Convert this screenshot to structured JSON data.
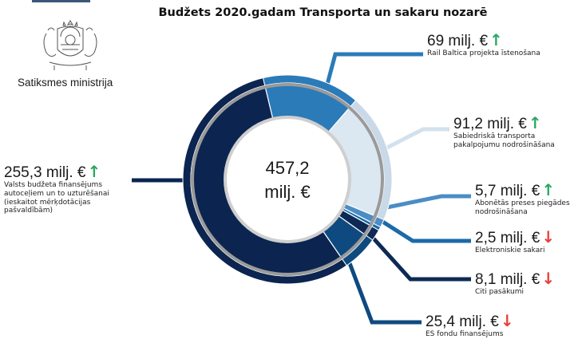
{
  "header": {
    "title": "Budžets 2020.gadam Transporta un sakaru nozarē",
    "ministry": "Satiksmes ministrija"
  },
  "chart_data": {
    "type": "pie",
    "variant": "donut",
    "title": "Budžets 2020.gadam Transporta un sakaru nozarē",
    "total": {
      "value": "457,2",
      "unit": "milj. €"
    },
    "slices": [
      {
        "value": 69,
        "value_label": "69 milj. €",
        "label": "Rail Baltica projekta īstenošana",
        "trend": "up",
        "color": "#2b7bb9"
      },
      {
        "value": 91.2,
        "value_label": "91,2 milj. €",
        "label": "Sabiedriskā transporta pakalpojumu nodrošināšana",
        "trend": "up",
        "color": "#dbe7f1"
      },
      {
        "value": 5.7,
        "value_label": "5,7 milj. €",
        "label": "Abonētās preses piegādes nodrošināšana",
        "trend": "up",
        "color": "#4b8dc5"
      },
      {
        "value": 2.5,
        "value_label": "2,5 milj. €",
        "label": "Elektroniskie sakari",
        "trend": "down",
        "color": "#1b6aa9"
      },
      {
        "value": 8.1,
        "value_label": "8,1 milj. €",
        "label": "Citi pasākumi",
        "trend": "down",
        "color": "#0d2a55"
      },
      {
        "value": 25.4,
        "value_label": "25,4 milj. €",
        "label": "ES fondu finansējums",
        "trend": "down",
        "color": "#0e4a80"
      },
      {
        "value": 255.3,
        "value_label": "255,3 milj. €",
        "label": "Valsts budžeta finansējums autoceļiem un to uzturēšanai (ieskaitot mērķdotācijas pašvaldībām)",
        "trend": "up",
        "color": "#0b2550"
      }
    ],
    "trend_colors": {
      "up": "#2aa860",
      "down": "#e8403a"
    }
  }
}
